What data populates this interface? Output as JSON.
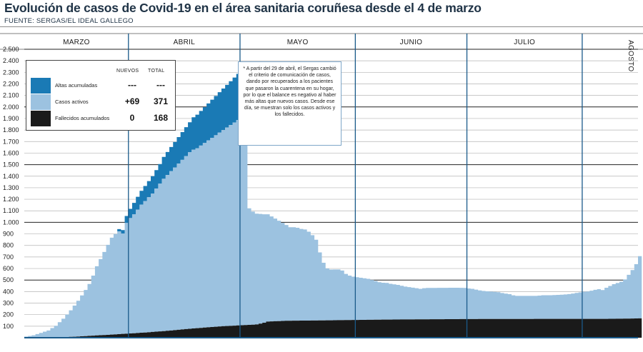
{
  "header": {
    "title": "Evolución de casos de Covid-19 en el área sanitaria coruñesa desde el 4 de marzo",
    "source": "FUENTE: SERGAS/EL IDEAL GALLEGO"
  },
  "legend": {
    "col_new": "NUEVOS",
    "col_total": "TOTAL",
    "rows": [
      {
        "label": "Altas acumuladas",
        "new": "---",
        "total": "---",
        "color": "#1a7ab5"
      },
      {
        "label": "Casos activos",
        "new": "+69",
        "total": "371",
        "color": "#9cc2e0"
      },
      {
        "label": "Fallecidos acumulados",
        "new": "0",
        "total": "168",
        "color": "#1a1a1a"
      }
    ]
  },
  "note": "* A partir del 29 de abril, el Sergas cambió el criterio de comunicación de casos, dando por recuperados a los pacientes que pasaron la cuarentena en su hogar, por lo que el balance es negativo al haber más altas que nuevos casos. Desde ese día, se muestran solo los casos activos y los fallecidos.",
  "chart_data": {
    "type": "area",
    "stacked": true,
    "ylim": [
      0,
      2500
    ],
    "yticks": [
      "100",
      "200",
      "300",
      "400",
      "500",
      "600",
      "700",
      "800",
      "900",
      "1.000",
      "1.100",
      "1.200",
      "1.300",
      "1.400",
      "1.500",
      "1.600",
      "1.700",
      "1.800",
      "1.900",
      "2.000",
      "2.100",
      "2.200",
      "2.300",
      "2.400",
      "2.500"
    ],
    "yticks_values": [
      100,
      200,
      300,
      400,
      500,
      600,
      700,
      800,
      900,
      1000,
      1100,
      1200,
      1300,
      1400,
      1500,
      1600,
      1700,
      1800,
      1900,
      2000,
      2100,
      2200,
      2300,
      2400,
      2500
    ],
    "months": [
      "MARZO",
      "ABRIL",
      "MAYO",
      "JUNIO",
      "JULIO",
      "AGOSTO"
    ],
    "grid": "horizontal",
    "series": [
      {
        "name": "Fallecidos acumulados",
        "color": "#1a1a1a",
        "points": [
          [
            0,
            0
          ],
          [
            4,
            2
          ],
          [
            10,
            5
          ],
          [
            14,
            10
          ],
          [
            18,
            18
          ],
          [
            22,
            25
          ],
          [
            27,
            35
          ],
          [
            32,
            45
          ],
          [
            38,
            60
          ],
          [
            43,
            75
          ],
          [
            48,
            88
          ],
          [
            53,
            100
          ],
          [
            58,
            108
          ],
          [
            62,
            115
          ],
          [
            64,
            130
          ],
          [
            65,
            140
          ],
          [
            70,
            147
          ],
          [
            80,
            150
          ],
          [
            86,
            153
          ],
          [
            94,
            156
          ],
          [
            100,
            158
          ],
          [
            110,
            160
          ],
          [
            120,
            162
          ],
          [
            140,
            163
          ],
          [
            155,
            163
          ],
          [
            158,
            164
          ],
          [
            163,
            166
          ],
          [
            165,
            168
          ]
        ]
      },
      {
        "name": "Casos activos",
        "color": "#9cc2e0",
        "points": [
          [
            0,
            10
          ],
          [
            2,
            20
          ],
          [
            4,
            40
          ],
          [
            6,
            60
          ],
          [
            8,
            100
          ],
          [
            10,
            160
          ],
          [
            12,
            230
          ],
          [
            14,
            310
          ],
          [
            16,
            400
          ],
          [
            17,
            450
          ],
          [
            18,
            520
          ],
          [
            19,
            600
          ],
          [
            20,
            660
          ],
          [
            21,
            720
          ],
          [
            22,
            780
          ],
          [
            23,
            840
          ],
          [
            24,
            870
          ],
          [
            25,
            890
          ],
          [
            26,
            870
          ],
          [
            27,
            960
          ],
          [
            28,
            1000
          ],
          [
            29,
            1030
          ],
          [
            30,
            1070
          ],
          [
            31,
            1110
          ],
          [
            32,
            1140
          ],
          [
            33,
            1170
          ],
          [
            34,
            1200
          ],
          [
            35,
            1240
          ],
          [
            36,
            1280
          ],
          [
            37,
            1320
          ],
          [
            38,
            1350
          ],
          [
            39,
            1380
          ],
          [
            40,
            1410
          ],
          [
            41,
            1440
          ],
          [
            42,
            1470
          ],
          [
            43,
            1500
          ],
          [
            44,
            1530
          ],
          [
            45,
            1550
          ],
          [
            46,
            1560
          ],
          [
            47,
            1580
          ],
          [
            48,
            1600
          ],
          [
            49,
            1620
          ],
          [
            50,
            1640
          ],
          [
            51,
            1660
          ],
          [
            52,
            1680
          ],
          [
            53,
            1700
          ],
          [
            54,
            1720
          ],
          [
            55,
            1740
          ],
          [
            56,
            1760
          ],
          [
            57,
            1780
          ],
          [
            58,
            1790
          ],
          [
            59,
            1800
          ],
          [
            60,
            1010
          ],
          [
            61,
            980
          ],
          [
            62,
            960
          ],
          [
            63,
            950
          ],
          [
            64,
            940
          ],
          [
            65,
            930
          ],
          [
            66,
            910
          ],
          [
            67,
            890
          ],
          [
            68,
            870
          ],
          [
            69,
            850
          ],
          [
            70,
            830
          ],
          [
            71,
            810
          ],
          [
            72,
            810
          ],
          [
            73,
            805
          ],
          [
            74,
            795
          ],
          [
            75,
            790
          ],
          [
            76,
            770
          ],
          [
            77,
            740
          ],
          [
            78,
            700
          ],
          [
            79,
            590
          ],
          [
            80,
            500
          ],
          [
            81,
            450
          ],
          [
            82,
            440
          ],
          [
            83,
            440
          ],
          [
            84,
            440
          ],
          [
            85,
            430
          ],
          [
            86,
            400
          ],
          [
            87,
            385
          ],
          [
            88,
            375
          ],
          [
            89,
            370
          ],
          [
            90,
            365
          ],
          [
            91,
            360
          ],
          [
            92,
            355
          ],
          [
            93,
            345
          ],
          [
            94,
            335
          ],
          [
            95,
            325
          ],
          [
            96,
            320
          ],
          [
            97,
            318
          ],
          [
            98,
            310
          ],
          [
            99,
            305
          ],
          [
            100,
            300
          ],
          [
            101,
            292
          ],
          [
            102,
            285
          ],
          [
            103,
            280
          ],
          [
            104,
            275
          ],
          [
            105,
            270
          ],
          [
            106,
            265
          ],
          [
            107,
            270
          ],
          [
            108,
            272
          ],
          [
            109,
            272
          ],
          [
            110,
            272
          ],
          [
            112,
            272
          ],
          [
            114,
            272
          ],
          [
            116,
            272
          ],
          [
            118,
            270
          ],
          [
            119,
            265
          ],
          [
            120,
            262
          ],
          [
            121,
            255
          ],
          [
            122,
            248
          ],
          [
            123,
            243
          ],
          [
            124,
            240
          ],
          [
            125,
            238
          ],
          [
            126,
            235
          ],
          [
            127,
            232
          ],
          [
            128,
            225
          ],
          [
            129,
            220
          ],
          [
            130,
            215
          ],
          [
            131,
            205
          ],
          [
            132,
            200
          ],
          [
            133,
            200
          ],
          [
            135,
            200
          ],
          [
            137,
            200
          ],
          [
            139,
            205
          ],
          [
            141,
            205
          ],
          [
            143,
            208
          ],
          [
            145,
            212
          ],
          [
            146,
            215
          ],
          [
            147,
            220
          ],
          [
            148,
            225
          ],
          [
            149,
            230
          ],
          [
            150,
            235
          ],
          [
            151,
            238
          ],
          [
            152,
            245
          ],
          [
            153,
            252
          ],
          [
            154,
            258
          ],
          [
            155,
            250
          ],
          [
            156,
            270
          ],
          [
            157,
            285
          ],
          [
            158,
            300
          ],
          [
            159,
            310
          ],
          [
            160,
            320
          ],
          [
            161,
            340
          ],
          [
            162,
            380
          ],
          [
            163,
            420
          ],
          [
            164,
            470
          ],
          [
            165,
            539
          ]
        ]
      },
      {
        "name": "Altas acumuladas",
        "color": "#1a7ab5",
        "points": [
          [
            0,
            0
          ],
          [
            24,
            0
          ],
          [
            25,
            20
          ],
          [
            26,
            30
          ],
          [
            27,
            60
          ],
          [
            28,
            80
          ],
          [
            29,
            100
          ],
          [
            30,
            110
          ],
          [
            31,
            120
          ],
          [
            32,
            130
          ],
          [
            33,
            140
          ],
          [
            34,
            150
          ],
          [
            35,
            160
          ],
          [
            36,
            170
          ],
          [
            37,
            190
          ],
          [
            38,
            200
          ],
          [
            39,
            210
          ],
          [
            40,
            220
          ],
          [
            41,
            230
          ],
          [
            42,
            240
          ],
          [
            43,
            250
          ],
          [
            44,
            260
          ],
          [
            45,
            280
          ],
          [
            46,
            290
          ],
          [
            47,
            300
          ],
          [
            48,
            310
          ],
          [
            49,
            320
          ],
          [
            50,
            330
          ],
          [
            51,
            340
          ],
          [
            52,
            350
          ],
          [
            53,
            360
          ],
          [
            54,
            370
          ],
          [
            55,
            380
          ],
          [
            56,
            390
          ],
          [
            57,
            400
          ],
          [
            58,
            410
          ],
          [
            59,
            420
          ],
          [
            60,
            0
          ],
          [
            165,
            0
          ]
        ]
      }
    ]
  }
}
